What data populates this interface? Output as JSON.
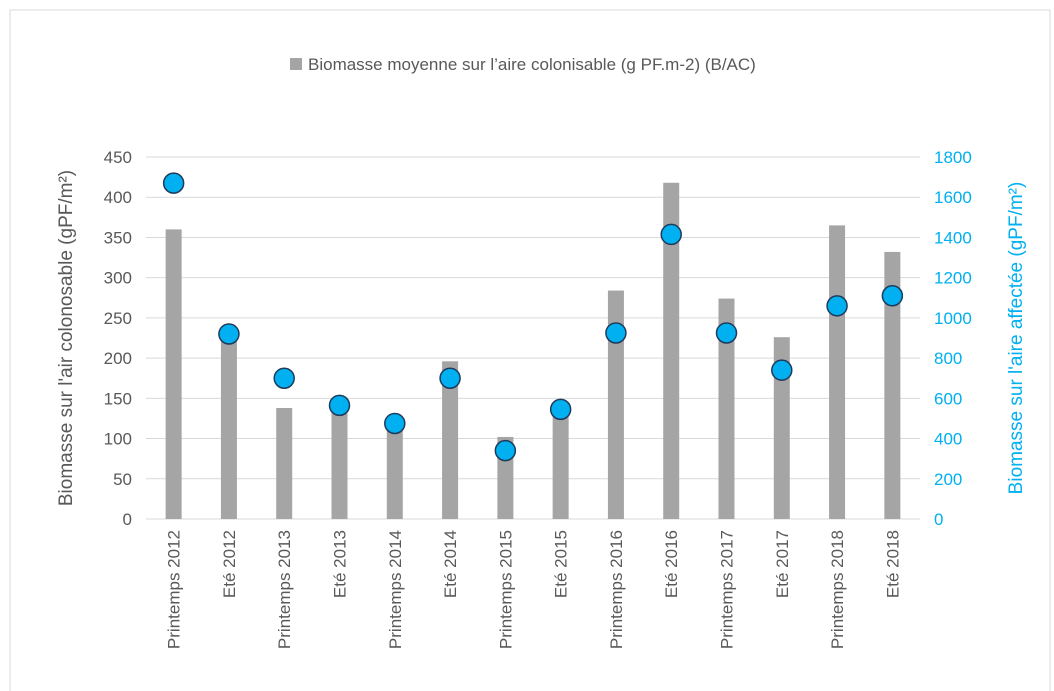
{
  "chart_data": {
    "type": "bar",
    "ylabel": "Biomasse sur l'air colonosable  (gPF/m²)",
    "y2label": "Biomasse sur l'aire affectée (gPF/m²)",
    "categories": [
      "Printemps 2012",
      "Eté 2012",
      "Printemps 2013",
      "Eté 2013",
      "Printemps 2014",
      "Eté 2014",
      "Printemps 2015",
      "Eté 2015",
      "Printemps 2016",
      "Eté 2016",
      "Printemps 2017",
      "Eté 2017",
      "Printemps 2018",
      "Eté 2018"
    ],
    "series": [
      {
        "name": "Biomasse moyenne sur l’aire colonisable (g PF.m-2) (B/AC)",
        "color": "#a5a5a5",
        "values": [
          360,
          230,
          138,
          135,
          120,
          196,
          102,
          130,
          284,
          418,
          274,
          226,
          365,
          332
        ]
      },
      {
        "color": "#00b0f0",
        "axis": "y2",
        "values": [
          1670,
          920,
          700,
          565,
          475,
          700,
          340,
          545,
          925,
          1415,
          925,
          740,
          1060,
          1110
        ]
      }
    ],
    "ylim": [
      0,
      450
    ],
    "yticks": [
      0,
      50,
      100,
      150,
      200,
      250,
      300,
      350,
      400,
      450
    ],
    "y2lim": [
      0,
      1800
    ],
    "y2ticks": [
      0,
      200,
      400,
      600,
      800,
      1000,
      1200,
      1400,
      1600,
      1800
    ],
    "grid": true
  }
}
